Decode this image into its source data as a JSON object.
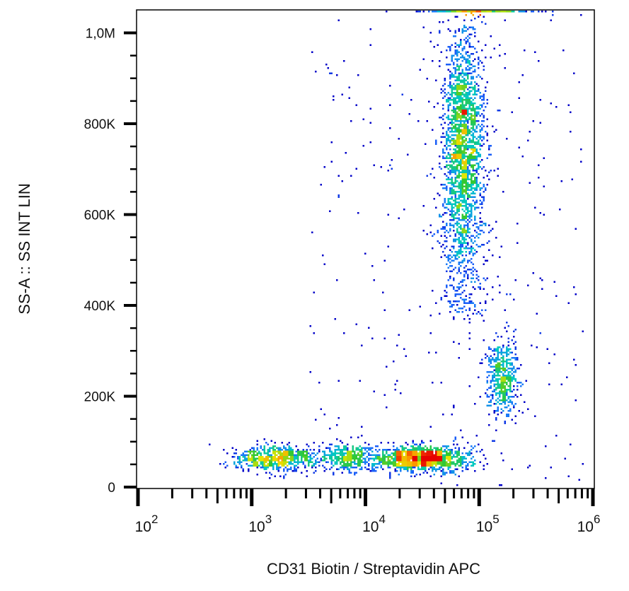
{
  "chart_data": {
    "type": "scatter",
    "subtype": "density-dot-plot",
    "title": "",
    "xlabel": "CD31 Biotin / Streptavidin APC",
    "ylabel": "SS-A :: SS INT LIN",
    "xscale": "log",
    "yscale": "linear",
    "xlim": [
      100,
      1000000
    ],
    "ylim": [
      0,
      1050000
    ],
    "x_ticks": [
      {
        "base": "10",
        "exp": "2",
        "value": 100
      },
      {
        "base": "10",
        "exp": "3",
        "value": 1000
      },
      {
        "base": "10",
        "exp": "4",
        "value": 10000
      },
      {
        "base": "10",
        "exp": "5",
        "value": 100000
      },
      {
        "base": "10",
        "exp": "6",
        "value": 1000000
      }
    ],
    "y_ticks": [
      {
        "label": "0",
        "value": 0
      },
      {
        "label": "200K",
        "value": 200000
      },
      {
        "label": "400K",
        "value": 400000
      },
      {
        "label": "600K",
        "value": 600000
      },
      {
        "label": "800K",
        "value": 800000
      },
      {
        "label": "1,0M",
        "value": 1000000
      }
    ],
    "grid": false,
    "legend": "none",
    "colormap": [
      "#0000c8",
      "#1e6eff",
      "#00c8c8",
      "#32c832",
      "#e6e600",
      "#ff8c00",
      "#e60000"
    ],
    "populations": [
      {
        "log10_x_mean": 4.85,
        "log10_x_sd": 0.09,
        "y_mean": 760000,
        "y_sd": 130000,
        "events": 2200
      },
      {
        "log10_x_mean": 4.85,
        "log10_x_sd": 0.12,
        "y_min": 380000,
        "y_max": 600000,
        "events": 300
      },
      {
        "log10_x_mean": 5.2,
        "log10_x_sd": 0.07,
        "y_mean": 240000,
        "y_sd": 40000,
        "events": 500
      },
      {
        "log10_x_mean": 3.2,
        "log10_x_sd": 0.18,
        "y_mean": 65000,
        "y_sd": 14000,
        "events": 700
      },
      {
        "log10_x_mean": 3.85,
        "log10_x_sd": 0.15,
        "y_mean": 65000,
        "y_sd": 14000,
        "events": 400
      },
      {
        "log10_x_mean": 4.5,
        "log10_x_sd": 0.2,
        "y_mean": 65000,
        "y_sd": 14000,
        "events": 1300
      },
      {
        "log10_x_min": 3.5,
        "log10_x_max": 5.9,
        "y_min": 0,
        "y_max": 1050000,
        "events": 300
      },
      {
        "log10_x_mean": 5.0,
        "log10_x_sd": 0.22,
        "y_fixed": 1050000,
        "events": 250,
        "note": "off-scale events at top"
      }
    ]
  }
}
